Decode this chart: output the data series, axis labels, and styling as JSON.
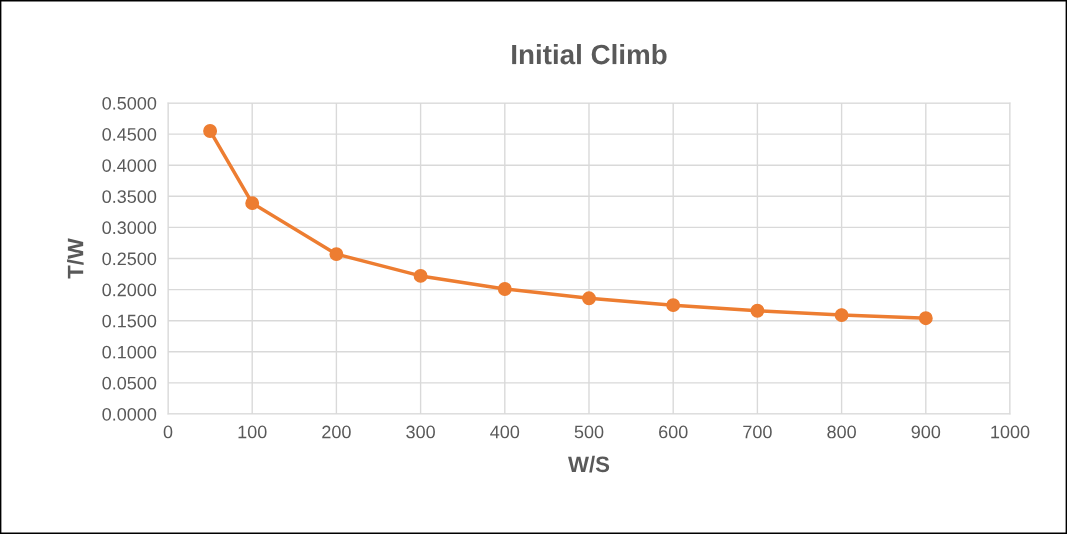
{
  "chart_data": {
    "type": "line",
    "title": "Initial Climb",
    "xlabel": "W/S",
    "ylabel": "T/W",
    "x": [
      50,
      100,
      200,
      300,
      400,
      500,
      600,
      700,
      800,
      900
    ],
    "series": [
      {
        "color": "#ed7d31",
        "values": [
          0.455,
          0.339,
          0.257,
          0.222,
          0.201,
          0.186,
          0.175,
          0.166,
          0.159,
          0.154
        ]
      }
    ],
    "xlim": [
      0,
      1000
    ],
    "xticks": [
      0,
      100,
      200,
      300,
      400,
      500,
      600,
      700,
      800,
      900,
      1000
    ],
    "ylim": [
      0,
      0.5
    ],
    "yticks": [
      {
        "value": 0,
        "label": "0.0000"
      },
      {
        "value": 0.05,
        "label": "0.0500"
      },
      {
        "value": 0.1,
        "label": "0.1000"
      },
      {
        "value": 0.15,
        "label": "0.1500"
      },
      {
        "value": 0.2,
        "label": "0.2000"
      },
      {
        "value": 0.25,
        "label": "0.2500"
      },
      {
        "value": 0.3,
        "label": "0.3000"
      },
      {
        "value": 0.35,
        "label": "0.3500"
      },
      {
        "value": 0.4,
        "label": "0.4000"
      },
      {
        "value": 0.45,
        "label": "0.4500"
      },
      {
        "value": 0.5,
        "label": "0.5000"
      }
    ],
    "grid": true,
    "marker": "circle",
    "line_style": "solid"
  }
}
